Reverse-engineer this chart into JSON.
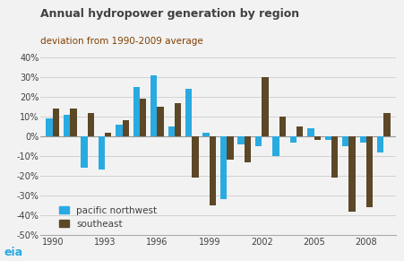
{
  "title": "Annual hydropower generation by region",
  "subtitle": "deviation from 1990-2009 average",
  "years": [
    1990,
    1991,
    1992,
    1993,
    1994,
    1995,
    1996,
    1997,
    1998,
    1999,
    2000,
    2001,
    2002,
    2003,
    2004,
    2005,
    2006,
    2007,
    2008,
    2009
  ],
  "pacific_northwest": [
    9,
    11,
    -16,
    -17,
    6,
    25,
    31,
    5,
    24,
    2,
    -32,
    -4,
    -5,
    -10,
    -3,
    4,
    -2,
    -5,
    -3,
    -8
  ],
  "southeast": [
    14,
    14,
    12,
    2,
    8,
    19,
    15,
    17,
    -21,
    -35,
    -12,
    -13,
    30,
    10,
    5,
    -2,
    -21,
    -38,
    -36,
    12
  ],
  "pnw_color": "#29ABE2",
  "se_color": "#5C4827",
  "ylim": [
    -50,
    40
  ],
  "yticks": [
    -50,
    -40,
    -30,
    -20,
    -10,
    0,
    10,
    20,
    30,
    40
  ],
  "xtick_years": [
    1990,
    1993,
    1996,
    1999,
    2002,
    2005,
    2008
  ],
  "title_color": "#404040",
  "subtitle_color": "#804000",
  "background_color": "#F2F2F2",
  "grid_color": "#CCCCCC",
  "bar_width": 0.38,
  "title_fontsize": 9,
  "subtitle_fontsize": 7.5,
  "tick_fontsize": 7,
  "legend_fontsize": 7.5
}
